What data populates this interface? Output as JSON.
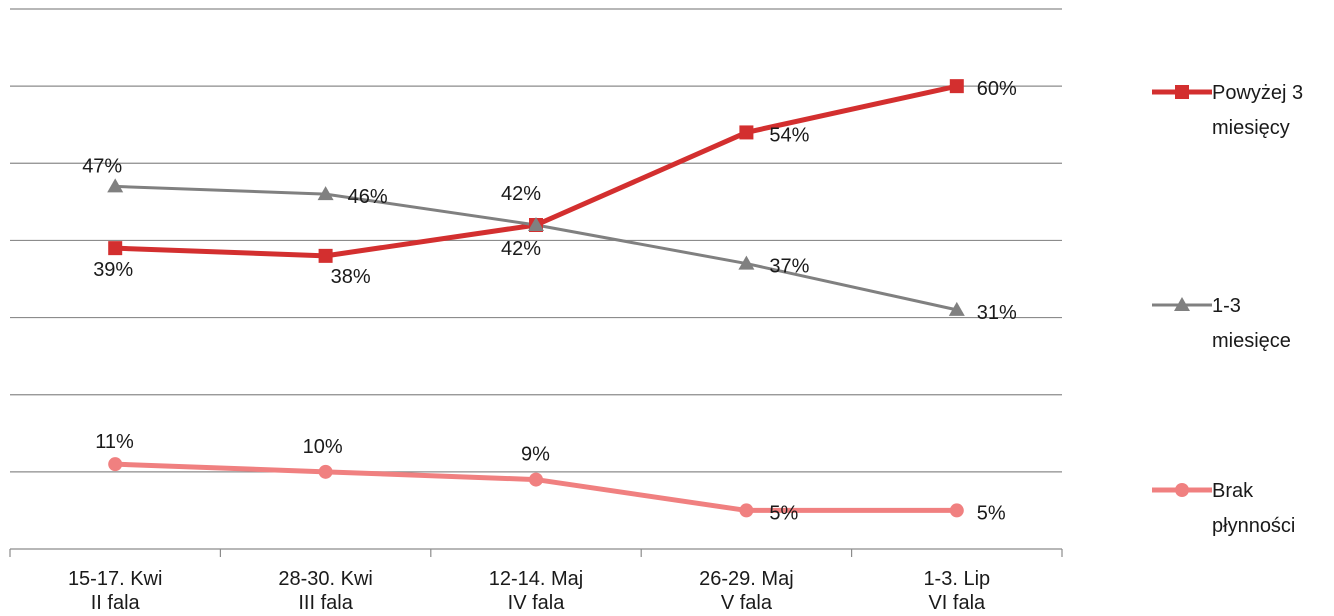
{
  "chart_data": {
    "type": "line",
    "categories": [
      [
        "15-17. Kwi",
        "II fala"
      ],
      [
        "28-30. Kwi",
        "III fala"
      ],
      [
        "12-14. Maj",
        "IV fala"
      ],
      [
        "26-29. Maj",
        "V fala"
      ],
      [
        "1-3. Lip",
        "VI fala"
      ]
    ],
    "ylim": [
      0,
      70
    ],
    "grid": true,
    "legend_position": "right",
    "series": [
      {
        "name": "Powyżej 3 miesięcy",
        "legend_lines": [
          "Powyżej 3",
          "miesięcy"
        ],
        "color": "#d32f2f",
        "marker": "square",
        "values": [
          39,
          38,
          42,
          54,
          60
        ],
        "labels": [
          "39%",
          "38%",
          "42%",
          "54%",
          "60%"
        ]
      },
      {
        "name": "1-3 miesięce",
        "legend_lines": [
          "1-3",
          "miesięce"
        ],
        "color": "#808080",
        "marker": "triangle",
        "values": [
          47,
          46,
          42,
          37,
          31
        ],
        "labels": [
          "47%",
          "46%",
          "42%",
          "37%",
          "31%"
        ]
      },
      {
        "name": "Brak płynności",
        "legend_lines": [
          "Brak",
          "płynności"
        ],
        "color": "#f08080",
        "marker": "circle",
        "values": [
          11,
          10,
          9,
          5,
          5
        ],
        "labels": [
          "11%",
          "10%",
          "9%",
          "5%",
          "5%"
        ]
      }
    ]
  }
}
